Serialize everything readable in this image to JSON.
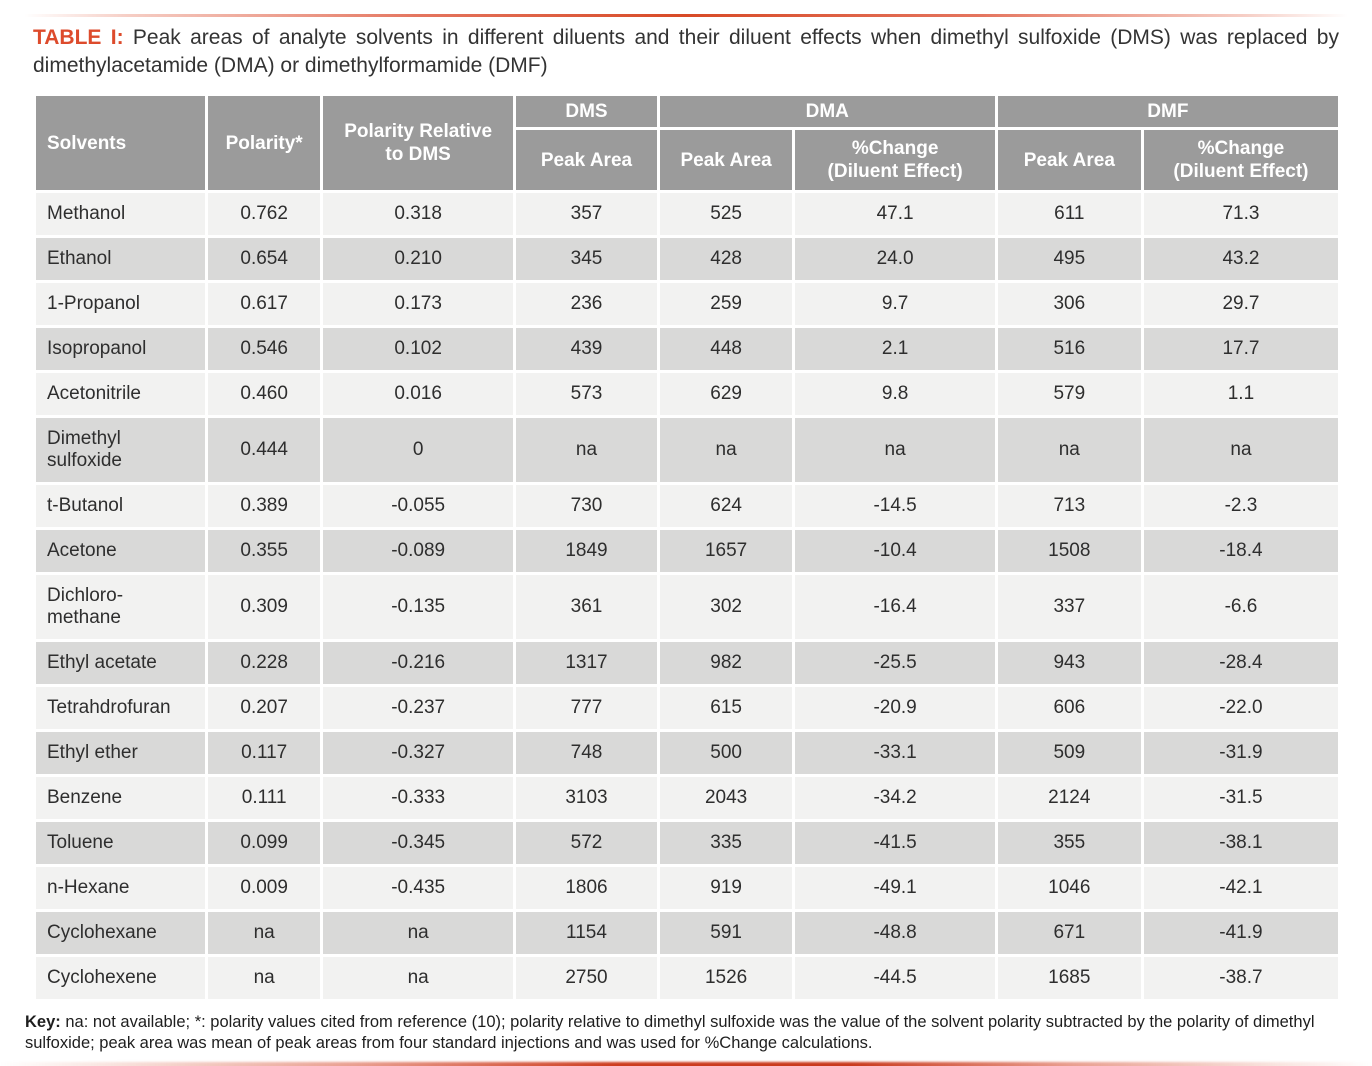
{
  "title": {
    "label": "TABLE I:",
    "text": " Peak areas of analyte solvents in different diluents and their diluent effects when dimethyl sulfoxide (DMS) was replaced by dimethylacetamide (DMA) or dimethylformamide (DMF)"
  },
  "table": {
    "header": {
      "solvents": "Solvents",
      "polarity": "Polarity*",
      "polarity_relative_to_dms": "Polarity Relative\nto DMS",
      "dms": "DMS",
      "dma": "DMA",
      "dmf": "DMF",
      "peak_area": "Peak Area",
      "pct_change": "%Change\n(Diluent Effect)"
    },
    "rows": [
      [
        "Methanol",
        "0.762",
        "0.318",
        "357",
        "525",
        "47.1",
        "611",
        "71.3"
      ],
      [
        "Ethanol",
        "0.654",
        "0.210",
        "345",
        "428",
        "24.0",
        "495",
        "43.2"
      ],
      [
        "1-Propanol",
        "0.617",
        "0.173",
        "236",
        "259",
        "9.7",
        "306",
        "29.7"
      ],
      [
        "Isopropanol",
        "0.546",
        "0.102",
        "439",
        "448",
        "2.1",
        "516",
        "17.7"
      ],
      [
        "Acetonitrile",
        "0.460",
        "0.016",
        "573",
        "629",
        "9.8",
        "579",
        "1.1"
      ],
      [
        "Dimethyl\nsulfoxide",
        "0.444",
        "0",
        "na",
        "na",
        "na",
        "na",
        "na"
      ],
      [
        "t-Butanol",
        "0.389",
        "-0.055",
        "730",
        "624",
        "-14.5",
        "713",
        "-2.3"
      ],
      [
        "Acetone",
        "0.355",
        "-0.089",
        "1849",
        "1657",
        "-10.4",
        "1508",
        "-18.4"
      ],
      [
        "Dichloro-\nmethane",
        "0.309",
        "-0.135",
        "361",
        "302",
        "-16.4",
        "337",
        "-6.6"
      ],
      [
        "Ethyl acetate",
        "0.228",
        "-0.216",
        "1317",
        "982",
        "-25.5",
        "943",
        "-28.4"
      ],
      [
        "Tetrahdrofuran",
        "0.207",
        "-0.237",
        "777",
        "615",
        "-20.9",
        "606",
        "-22.0"
      ],
      [
        "Ethyl ether",
        "0.117",
        "-0.327",
        "748",
        "500",
        "-33.1",
        "509",
        "-31.9"
      ],
      [
        "Benzene",
        "0.111",
        "-0.333",
        "3103",
        "2043",
        "-34.2",
        "2124",
        "-31.5"
      ],
      [
        "Toluene",
        "0.099",
        "-0.345",
        "572",
        "335",
        "-41.5",
        "355",
        "-38.1"
      ],
      [
        "n-Hexane",
        "0.009",
        "-0.435",
        "1806",
        "919",
        "-49.1",
        "1046",
        "-42.1"
      ],
      [
        "Cyclohexane",
        "na",
        "na",
        "1154",
        "591",
        "-48.8",
        "671",
        "-41.9"
      ],
      [
        "Cyclohexene",
        "na",
        "na",
        "2750",
        "1526",
        "-44.5",
        "1685",
        "-38.7"
      ]
    ]
  },
  "key": {
    "label": "Key:",
    "text": " na: not available; *: polarity values cited from reference (10); polarity relative to dimethyl sulfoxide was the value of the solvent polarity subtracted by the polarity of dimethyl sulfoxide; peak area was mean of peak areas from four standard injections and was used for %Change calculations."
  },
  "colors": {
    "accent_red": "#DD4B2C",
    "header_grey": "#9B9B9B",
    "row_light": "#F2F2F1",
    "row_dark": "#D9D9D8",
    "body_text": "#2E2E2E",
    "header_text": "#FFFFFF"
  }
}
